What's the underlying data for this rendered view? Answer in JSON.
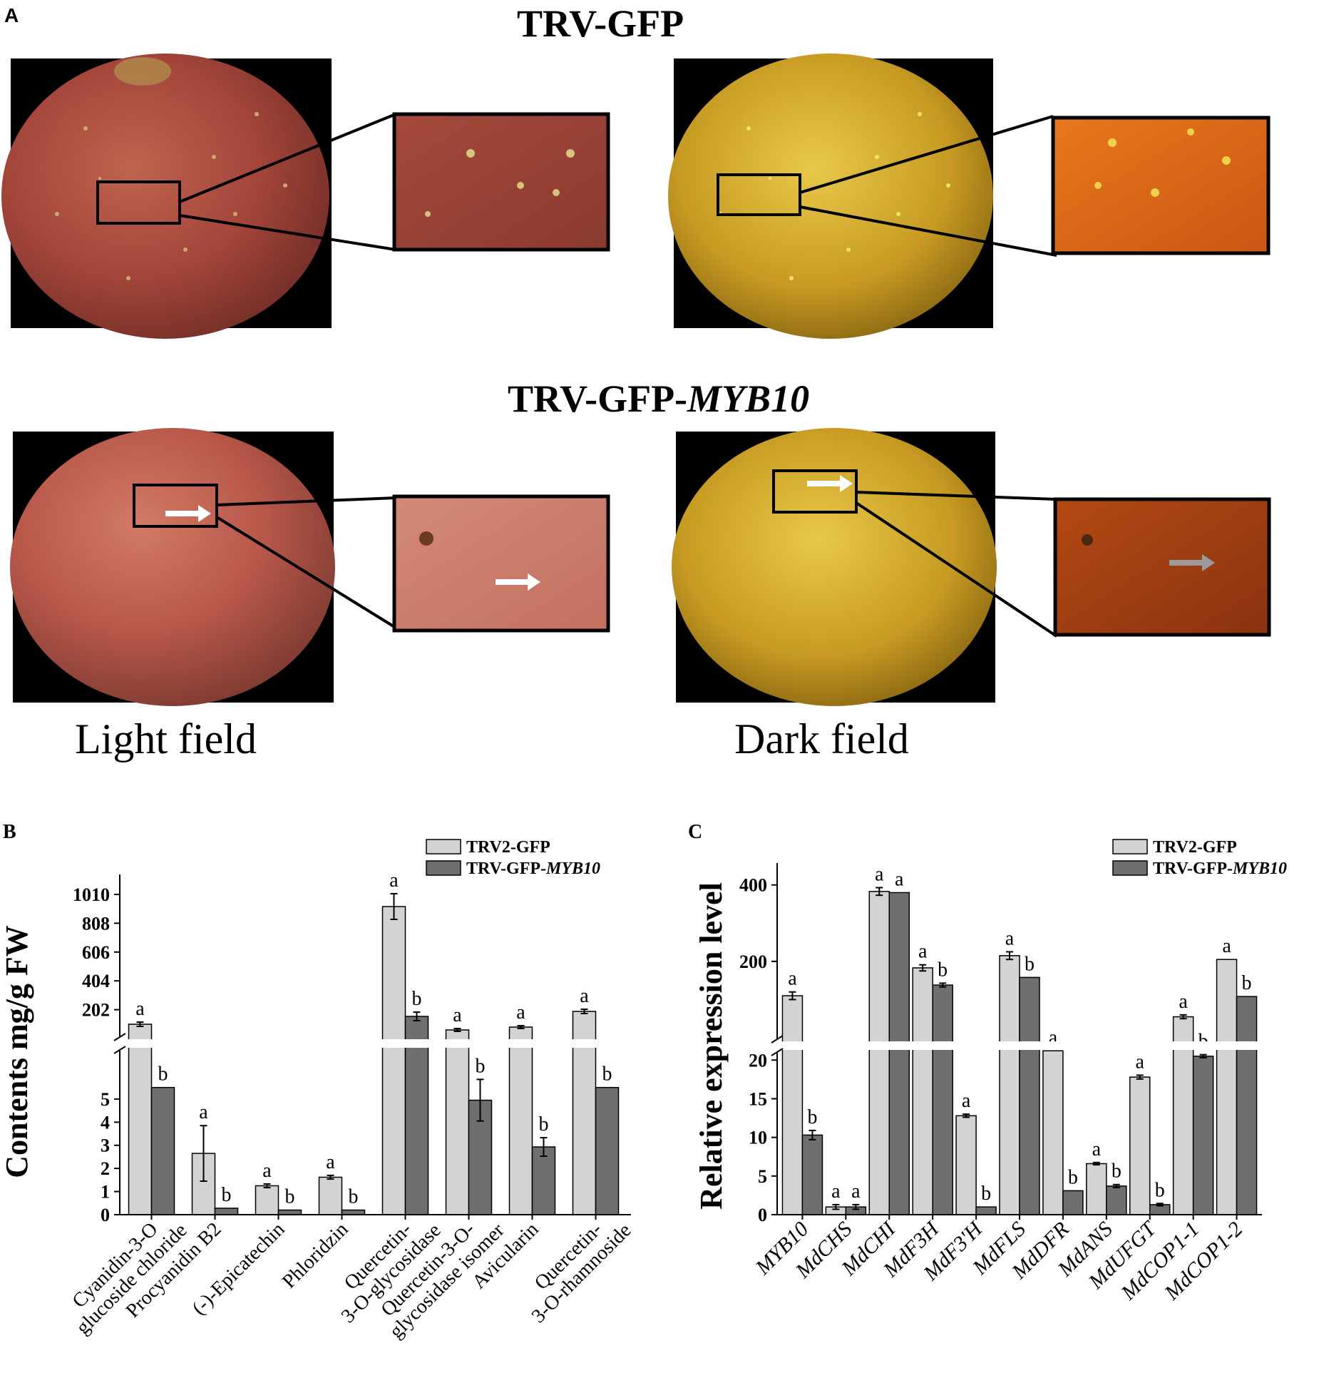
{
  "panel_a": {
    "letter": "A",
    "top_title": "TRV-GFP",
    "bottom_title_prefix": "TRV-GFP-",
    "bottom_title_gene": "MYB10",
    "light_label": "Light field",
    "dark_label": "Dark field"
  },
  "chart_data": [
    {
      "panel": "B",
      "type": "bar",
      "ylabel": "Contents mg/g FW",
      "y_lower_ticks": [
        "0",
        "1",
        "2",
        "3",
        "4",
        "5"
      ],
      "y_upper_ticks": [
        "202",
        "404",
        "606",
        "808",
        "1010"
      ],
      "y_break": true,
      "legend": [
        {
          "name": "TRV2-GFP",
          "name_gene": "",
          "color": "#d3d3d3"
        },
        {
          "name": "TRV-GFP-",
          "name_gene": "MYB10",
          "color": "#6f6f6f"
        }
      ],
      "categories": [
        [
          "Cyanidin-3-O",
          "glucoside chloride"
        ],
        [
          "Procyanidin B2"
        ],
        [
          "(-)-Epicatechin"
        ],
        [
          "Phloridzin"
        ],
        [
          "Quercetin-",
          "3-O-glycosidase"
        ],
        [
          "Quercetin-3-O-",
          "glycosidase isomer"
        ],
        [
          "Avicularin"
        ],
        [
          "Quercetin-",
          "3-O-rhamnoside"
        ]
      ],
      "series": [
        {
          "name": "TRV2-GFP",
          "values": [
            100,
            2.65,
            1.25,
            1.62,
            925,
            60,
            80,
            190
          ],
          "errors": [
            15,
            1.2,
            0.08,
            0.08,
            90,
            10,
            10,
            15
          ],
          "letters": [
            "a",
            "a",
            "a",
            "a",
            "a",
            "a",
            "a",
            "a"
          ]
        },
        {
          "name": "TRV-GFP-MYB10",
          "values": [
            5.5,
            0.28,
            0.2,
            0.2,
            155,
            4.95,
            2.93,
            5.5
          ],
          "errors": [
            0,
            0,
            0,
            0,
            30,
            0.9,
            0.4,
            0
          ],
          "letters": [
            "b",
            "b",
            "b",
            "b",
            "b",
            "b",
            "b",
            "b"
          ]
        }
      ]
    },
    {
      "panel": "C",
      "type": "bar",
      "ylabel": "Relative expression level",
      "y_lower_ticks": [
        "0",
        "5",
        "10",
        "15",
        "20"
      ],
      "y_upper_ticks": [
        "200",
        "400"
      ],
      "y_break": true,
      "legend": [
        {
          "name": "TRV2-GFP",
          "name_gene": "",
          "color": "#d3d3d3"
        },
        {
          "name": "TRV-GFP-",
          "name_gene": "MYB10",
          "color": "#6f6f6f"
        }
      ],
      "categories": [
        "MYB10",
        "MdCHS",
        "MdCHI",
        "MdF3H",
        "MdF3'H",
        "MdFLS",
        "MdDFR",
        "MdANS",
        "MdUFGT",
        "MdCOP1-1",
        "MdCOP1-2"
      ],
      "series": [
        {
          "name": "TRV2-GFP",
          "values": [
            110,
            1.0,
            383,
            183,
            12.8,
            215,
            21.2,
            6.6,
            17.8,
            55,
            205
          ],
          "errors": [
            10,
            0.3,
            10,
            8,
            0.2,
            10,
            0,
            0.15,
            0.25,
            5,
            0
          ],
          "letters": [
            "a",
            "a",
            "a",
            "a",
            "a",
            "a",
            "a",
            "a",
            "a",
            "a",
            "a"
          ]
        },
        {
          "name": "TRV-GFP-MYB10",
          "values": [
            10.3,
            1.0,
            380,
            138,
            1.0,
            158,
            3.1,
            3.7,
            1.3,
            20.5,
            108
          ],
          "errors": [
            0.6,
            0.3,
            0,
            5,
            0,
            0,
            0,
            0.2,
            0.15,
            0.2,
            0
          ],
          "letters": [
            "b",
            "a",
            "a",
            "b",
            "b",
            "b",
            "b",
            "b",
            "b",
            "b",
            "b"
          ]
        }
      ]
    }
  ]
}
